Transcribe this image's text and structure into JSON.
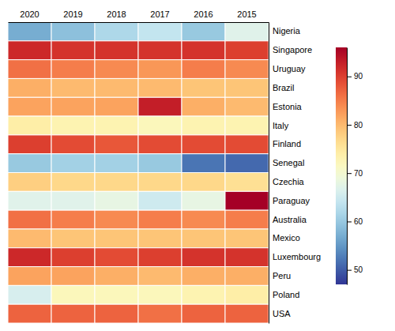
{
  "chart_data": {
    "type": "heatmap",
    "x": [
      "2020",
      "2019",
      "2018",
      "2017",
      "2016",
      "2015"
    ],
    "y": [
      "Nigeria",
      "Singapore",
      "Uruguay",
      "Brazil",
      "Estonia",
      "Italy",
      "Finland",
      "Senegal",
      "Czechia",
      "Paraguay",
      "Australia",
      "Mexico",
      "Luxembourg",
      "Peru",
      "Poland",
      "USA"
    ],
    "values": [
      [
        57,
        59,
        62,
        64,
        60,
        67
      ],
      [
        92,
        91,
        91,
        91,
        91,
        90
      ],
      [
        86,
        85,
        84,
        83,
        85,
        84
      ],
      [
        81,
        80,
        80,
        80,
        79,
        79
      ],
      [
        82,
        82,
        82,
        93,
        81,
        80
      ],
      [
        74,
        73,
        73,
        72,
        73,
        73
      ],
      [
        90,
        89,
        88,
        89,
        89,
        89
      ],
      [
        60,
        61,
        61,
        60,
        52,
        51
      ],
      [
        78,
        77,
        77,
        77,
        77,
        76
      ],
      [
        67,
        67,
        68,
        65,
        68,
        96
      ],
      [
        86,
        85,
        84,
        85,
        84,
        85
      ],
      [
        80,
        79,
        79,
        79,
        79,
        79
      ],
      [
        92,
        90,
        89,
        90,
        91,
        91
      ],
      [
        82,
        82,
        81,
        80,
        81,
        81
      ],
      [
        66,
        72,
        72,
        72,
        73,
        74
      ],
      [
        87,
        87,
        87,
        86,
        87,
        87
      ]
    ],
    "colorbar_range": [
      47,
      96
    ],
    "colorbar_ticks": [
      50,
      60,
      70,
      80,
      90
    ]
  }
}
